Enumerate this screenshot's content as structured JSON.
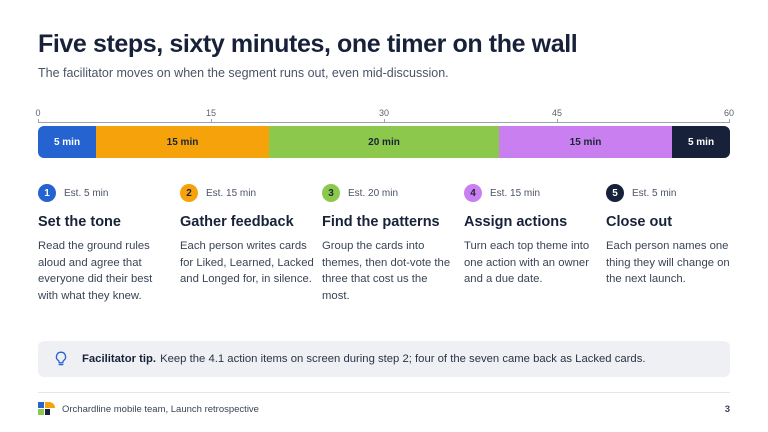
{
  "header": {
    "title": "Five steps, sixty minutes, one timer on the wall",
    "subtitle": "The facilitator moves on when the segment runs out, even mid-discussion."
  },
  "timeline": {
    "axis_max": 60,
    "ticks": [
      "0",
      "15",
      "30",
      "45",
      "60"
    ],
    "segments": [
      {
        "label": "5 min",
        "minutes": 5,
        "color": "#2563d0",
        "text_color": "#ffffff"
      },
      {
        "label": "15 min",
        "minutes": 15,
        "color": "#f6a20a",
        "text_color": "#1b2536"
      },
      {
        "label": "20 min",
        "minutes": 20,
        "color": "#8cc84b",
        "text_color": "#1b2536"
      },
      {
        "label": "15 min",
        "minutes": 15,
        "color": "#c97ff0",
        "text_color": "#1b2536"
      },
      {
        "label": "5 min",
        "minutes": 5,
        "color": "#17223a",
        "text_color": "#ffffff"
      }
    ]
  },
  "steps": [
    {
      "number": "1",
      "estimate": "Est. 5 min",
      "title": "Set the tone",
      "description": "Read the ground rules aloud and agree that everyone did their best with what they knew.",
      "color": "#2563d0",
      "num_text_color": "#ffffff"
    },
    {
      "number": "2",
      "estimate": "Est. 15 min",
      "title": "Gather feedback",
      "description": "Each person writes cards for Liked, Learned, Lacked and Longed for, in silence.",
      "color": "#f6a20a",
      "num_text_color": "#1b2536"
    },
    {
      "number": "3",
      "estimate": "Est. 20 min",
      "title": "Find the patterns",
      "description": "Group the cards into themes, then dot-vote the three that cost us the most.",
      "color": "#8cc84b",
      "num_text_color": "#1b2536"
    },
    {
      "number": "4",
      "estimate": "Est. 15 min",
      "title": "Assign actions",
      "description": "Turn each top theme into one action with an owner and a due date.",
      "color": "#c97ff0",
      "num_text_color": "#1b2536"
    },
    {
      "number": "5",
      "estimate": "Est. 5 min",
      "title": "Close out",
      "description": "Each person names one thing they will change on the next launch.",
      "color": "#17223a",
      "num_text_color": "#ffffff"
    }
  ],
  "tip": {
    "icon": "lightbulb-icon",
    "label": "Facilitator tip.",
    "text": "Keep the 4.1 action items on screen during step 2; four of the seven came back as Lacked cards."
  },
  "footer": {
    "logo": "team-logo",
    "text": "Orchardline mobile team, Launch retrospective",
    "page_number": "3"
  }
}
